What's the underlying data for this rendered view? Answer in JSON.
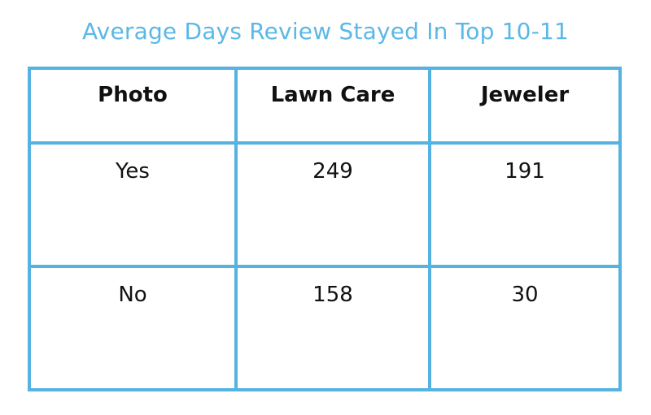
{
  "title": "Average Days Review Stayed In Top 10-11",
  "colors": {
    "title": "#5bb8e6",
    "border": "#55b2e1",
    "text": "#111111"
  },
  "chart_data": {
    "type": "table",
    "title": "Average Days Review Stayed In Top 10-11",
    "columns": [
      "Photo",
      "Lawn Care",
      "Jeweler"
    ],
    "rows": [
      [
        "Yes",
        "249",
        "191"
      ],
      [
        "No",
        "158",
        "30"
      ]
    ]
  }
}
